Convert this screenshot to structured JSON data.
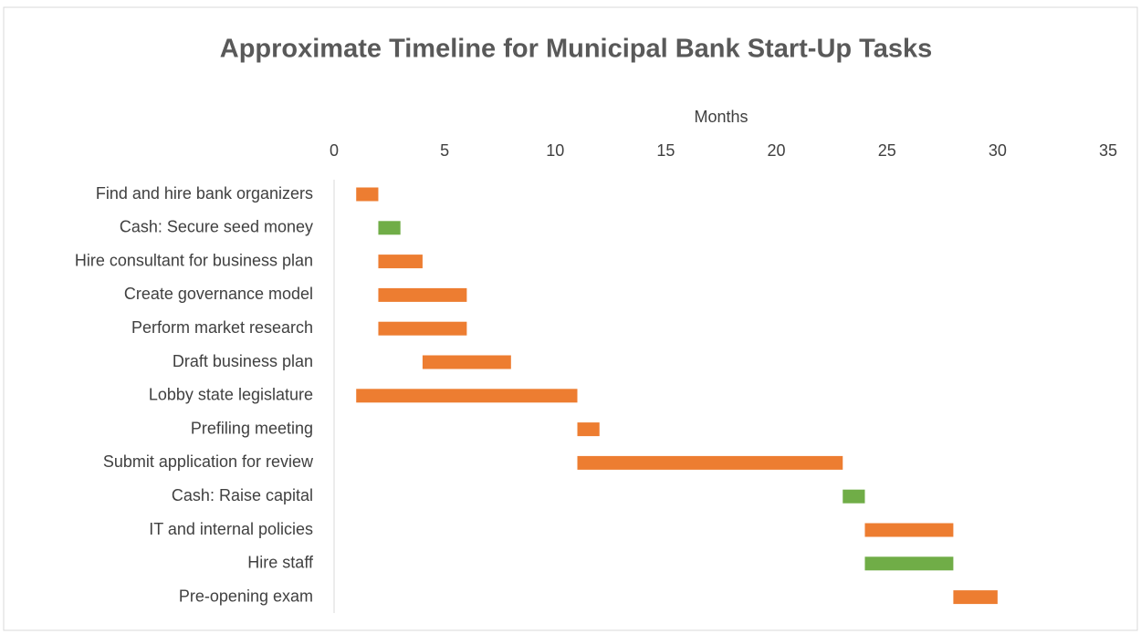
{
  "chart_data": {
    "type": "gantt",
    "title": "Approximate Timeline for Municipal Bank Start-Up Tasks",
    "x_label": "Months",
    "categories": [
      "Find and hire bank organizers",
      "Cash: Secure seed money",
      "Hire consultant for business plan",
      "Create governance model",
      "Perform market research",
      "Draft business plan",
      "Lobby state legislature",
      "Prefiling meeting",
      "Submit application for review",
      "Cash: Raise capital",
      "IT and internal policies",
      "Hire staff",
      "Pre-opening exam"
    ],
    "start": [
      1,
      2,
      2,
      2,
      2,
      4,
      1,
      11,
      11,
      23,
      24,
      24,
      28
    ],
    "duration": [
      1,
      1,
      2,
      4,
      4,
      4,
      10,
      1,
      12,
      1,
      4,
      4,
      2
    ],
    "colors": [
      "#ed7d31",
      "#70ad47",
      "#ed7d31",
      "#ed7d31",
      "#ed7d31",
      "#ed7d31",
      "#ed7d31",
      "#ed7d31",
      "#ed7d31",
      "#70ad47",
      "#ed7d31",
      "#70ad47",
      "#ed7d31"
    ],
    "xlim": [
      0,
      35
    ],
    "xticks": [
      0,
      5,
      10,
      15,
      20,
      25,
      30,
      35
    ],
    "grid": false
  }
}
